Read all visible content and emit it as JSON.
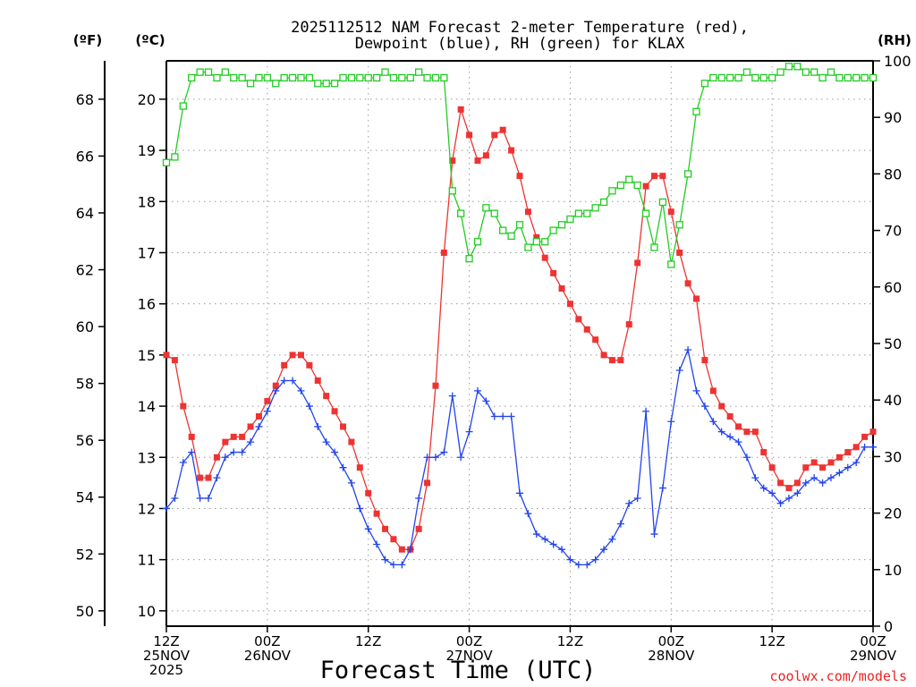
{
  "chart_data": {
    "type": "line",
    "title_lines": [
      "2025112512 NAM Forecast 2-meter Temperature (red),",
      "Dewpoint (blue), RH (green) for KLAX"
    ],
    "xlabel": "Forecast Time (UTC)",
    "credit": "coolwx.com/models",
    "unit_labels": {
      "fahrenheit": "(ºF)",
      "celsius": "(ºC)",
      "rh": "(RH)"
    },
    "x_range_hours": [
      0,
      84
    ],
    "x_step_hours": 1,
    "x_ticks": [
      {
        "hour": 0,
        "lines": [
          "12Z",
          "25NOV",
          "2025"
        ]
      },
      {
        "hour": 12,
        "lines": [
          "00Z",
          "26NOV"
        ]
      },
      {
        "hour": 24,
        "lines": [
          "12Z"
        ]
      },
      {
        "hour": 36,
        "lines": [
          "00Z",
          "27NOV"
        ]
      },
      {
        "hour": 48,
        "lines": [
          "12Z"
        ]
      },
      {
        "hour": 60,
        "lines": [
          "00Z",
          "28NOV"
        ]
      },
      {
        "hour": 72,
        "lines": [
          "12Z"
        ]
      },
      {
        "hour": 84,
        "lines": [
          "00Z",
          "29NOV"
        ]
      }
    ],
    "y_left_celsius": {
      "range": [
        9.7,
        20.75
      ],
      "ticks": [
        10,
        11,
        12,
        13,
        14,
        15,
        16,
        17,
        18,
        19,
        20
      ]
    },
    "y_far_left_fahrenheit": {
      "ticks": [
        50,
        52,
        54,
        56,
        58,
        60,
        62,
        64,
        66,
        68
      ]
    },
    "y_right_rh": {
      "range": [
        0,
        100
      ],
      "ticks": [
        0,
        10,
        20,
        30,
        40,
        50,
        60,
        70,
        80,
        90,
        100
      ]
    },
    "grid": true,
    "series": [
      {
        "name": "Temperature",
        "color": "#ee3333",
        "marker": "filled-square",
        "axis": "celsius",
        "values": [
          15.0,
          14.9,
          14.0,
          13.4,
          12.6,
          12.6,
          13.0,
          13.3,
          13.4,
          13.4,
          13.6,
          13.8,
          14.1,
          14.4,
          14.8,
          15.0,
          15.0,
          14.8,
          14.5,
          14.2,
          13.9,
          13.6,
          13.3,
          12.8,
          12.3,
          11.9,
          11.6,
          11.4,
          11.2,
          11.2,
          11.6,
          12.5,
          14.4,
          17.0,
          18.8,
          19.8,
          19.3,
          18.8,
          18.9,
          19.3,
          19.4,
          19.0,
          18.5,
          17.8,
          17.3,
          16.9,
          16.6,
          16.3,
          16.0,
          15.7,
          15.5,
          15.3,
          15.0,
          14.9,
          14.9,
          15.6,
          16.8,
          18.3,
          18.5,
          18.5,
          17.8,
          17.0,
          16.4,
          16.1,
          14.9,
          14.3,
          14.0,
          13.8,
          13.6,
          13.5,
          13.5,
          13.1,
          12.8,
          12.5,
          12.4,
          12.5,
          12.8,
          12.9,
          12.8,
          12.9,
          13.0,
          13.1,
          13.2,
          13.4,
          13.5
        ]
      },
      {
        "name": "Dewpoint",
        "color": "#2244ee",
        "marker": "plus",
        "axis": "celsius",
        "values": [
          12.0,
          12.2,
          12.9,
          13.1,
          12.2,
          12.2,
          12.6,
          13.0,
          13.1,
          13.1,
          13.3,
          13.6,
          13.9,
          14.3,
          14.5,
          14.5,
          14.3,
          14.0,
          13.6,
          13.3,
          13.1,
          12.8,
          12.5,
          12.0,
          11.6,
          11.3,
          11.0,
          10.9,
          10.9,
          11.2,
          12.2,
          13.0,
          13.0,
          13.1,
          14.2,
          13.0,
          13.5,
          14.3,
          14.1,
          13.8,
          13.8,
          13.8,
          12.3,
          11.9,
          11.5,
          11.4,
          11.3,
          11.2,
          11.0,
          10.9,
          10.9,
          11.0,
          11.2,
          11.4,
          11.7,
          12.1,
          12.2,
          13.9,
          11.5,
          12.4,
          13.7,
          14.7,
          15.1,
          14.3,
          14.0,
          13.7,
          13.5,
          13.4,
          13.3,
          13.0,
          12.6,
          12.4,
          12.3,
          12.1,
          12.2,
          12.3,
          12.5,
          12.6,
          12.5,
          12.6,
          12.7,
          12.8,
          12.9,
          13.2,
          13.2
        ]
      },
      {
        "name": "RH",
        "color": "#22cc22",
        "marker": "open-square",
        "axis": "rh",
        "values": [
          82,
          83,
          92,
          97,
          98,
          98,
          97,
          98,
          97,
          97,
          96,
          97,
          97,
          96,
          97,
          97,
          97,
          97,
          96,
          96,
          96,
          97,
          97,
          97,
          97,
          97,
          98,
          97,
          97,
          97,
          98,
          97,
          97,
          97,
          77,
          73,
          65,
          68,
          74,
          73,
          70,
          69,
          71,
          67,
          68,
          68,
          70,
          71,
          72,
          73,
          73,
          74,
          75,
          77,
          78,
          79,
          78,
          73,
          67,
          75,
          64,
          71,
          80,
          91,
          96,
          97,
          97,
          97,
          97,
          98,
          97,
          97,
          97,
          98,
          99,
          99,
          98,
          98,
          97,
          98,
          97,
          97,
          97,
          97,
          97
        ]
      }
    ]
  }
}
